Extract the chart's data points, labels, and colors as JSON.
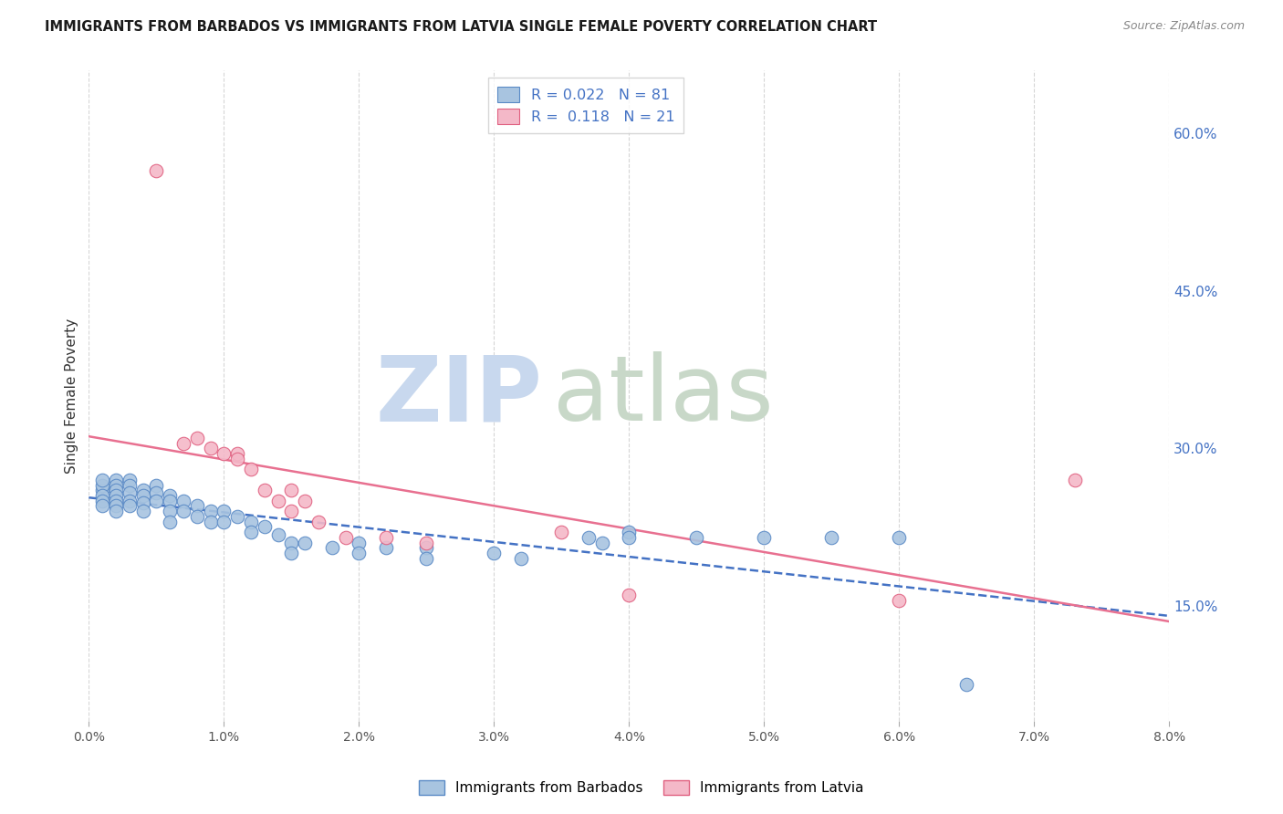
{
  "title": "IMMIGRANTS FROM BARBADOS VS IMMIGRANTS FROM LATVIA SINGLE FEMALE POVERTY CORRELATION CHART",
  "source": "Source: ZipAtlas.com",
  "ylabel": "Single Female Poverty",
  "xlim": [
    0.0,
    0.08
  ],
  "ylim": [
    0.04,
    0.66
  ],
  "xticks": [
    0.0,
    0.01,
    0.02,
    0.03,
    0.04,
    0.05,
    0.06,
    0.07,
    0.08
  ],
  "xticklabels": [
    "0.0%",
    "1.0%",
    "2.0%",
    "3.0%",
    "4.0%",
    "5.0%",
    "6.0%",
    "7.0%",
    "8.0%"
  ],
  "yticks_right": [
    0.15,
    0.3,
    0.45,
    0.6
  ],
  "yticklabels_right": [
    "15.0%",
    "30.0%",
    "45.0%",
    "60.0%"
  ],
  "legend_labels": [
    "Immigrants from Barbados",
    "Immigrants from Latvia"
  ],
  "legend_r_barbados": "0.022",
  "legend_n_barbados": "81",
  "legend_r_latvia": "0.118",
  "legend_n_latvia": "21",
  "color_barbados_fill": "#a8c4e0",
  "color_barbados_edge": "#5a8ac6",
  "color_latvia_fill": "#f4b8c8",
  "color_latvia_edge": "#e06080",
  "color_blue_line": "#4472c4",
  "color_pink_line": "#e87090",
  "color_text_blue": "#4472c4",
  "watermark_zip": "ZIP",
  "watermark_atlas": "atlas",
  "watermark_color_zip": "#c8d8ee",
  "watermark_color_atlas": "#c8d8c8",
  "background_color": "#ffffff",
  "grid_color": "#cccccc",
  "barbados_x": [
    0.001,
    0.001,
    0.001,
    0.001,
    0.001,
    0.001,
    0.002,
    0.002,
    0.002,
    0.002,
    0.002,
    0.002,
    0.002,
    0.003,
    0.003,
    0.003,
    0.003,
    0.003,
    0.004,
    0.004,
    0.004,
    0.004,
    0.005,
    0.005,
    0.005,
    0.006,
    0.006,
    0.006,
    0.006,
    0.007,
    0.007,
    0.008,
    0.008,
    0.009,
    0.009,
    0.01,
    0.01,
    0.011,
    0.012,
    0.012,
    0.013,
    0.014,
    0.015,
    0.015,
    0.016,
    0.018,
    0.02,
    0.02,
    0.022,
    0.025,
    0.025,
    0.03,
    0.032,
    0.037,
    0.038,
    0.04,
    0.04,
    0.045,
    0.05,
    0.055,
    0.06,
    0.065
  ],
  "barbados_y": [
    0.26,
    0.265,
    0.27,
    0.255,
    0.25,
    0.245,
    0.27,
    0.265,
    0.26,
    0.255,
    0.25,
    0.245,
    0.24,
    0.27,
    0.265,
    0.258,
    0.25,
    0.245,
    0.26,
    0.255,
    0.248,
    0.24,
    0.265,
    0.258,
    0.25,
    0.255,
    0.25,
    0.24,
    0.23,
    0.25,
    0.24,
    0.245,
    0.235,
    0.24,
    0.23,
    0.24,
    0.23,
    0.235,
    0.23,
    0.22,
    0.225,
    0.218,
    0.21,
    0.2,
    0.21,
    0.205,
    0.21,
    0.2,
    0.205,
    0.205,
    0.195,
    0.2,
    0.195,
    0.215,
    0.21,
    0.22,
    0.215,
    0.215,
    0.215,
    0.215,
    0.215,
    0.075
  ],
  "latvia_x": [
    0.005,
    0.007,
    0.008,
    0.009,
    0.01,
    0.011,
    0.011,
    0.012,
    0.013,
    0.014,
    0.015,
    0.015,
    0.016,
    0.017,
    0.019,
    0.022,
    0.025,
    0.035,
    0.04,
    0.06,
    0.073
  ],
  "latvia_y": [
    0.565,
    0.305,
    0.31,
    0.3,
    0.295,
    0.295,
    0.29,
    0.28,
    0.26,
    0.25,
    0.26,
    0.24,
    0.25,
    0.23,
    0.215,
    0.215,
    0.21,
    0.22,
    0.16,
    0.155,
    0.27
  ]
}
